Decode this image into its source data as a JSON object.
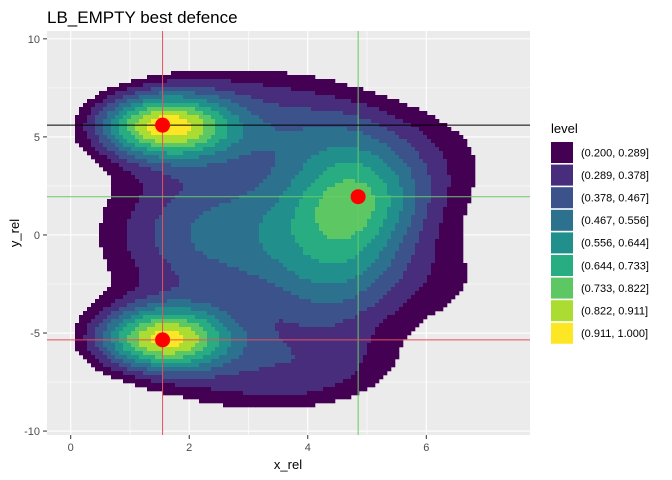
{
  "chart_data": {
    "type": "contour",
    "title": "LB_EMPTY best defence",
    "xlabel": "x_rel",
    "ylabel": "y_rel",
    "xlim": [
      -0.4,
      7.75
    ],
    "ylim": [
      -10.2,
      10.4
    ],
    "x_ticks": [
      0,
      2,
      4,
      6
    ],
    "x_tick_labels": [
      "0",
      "2",
      "4",
      "6"
    ],
    "y_ticks": [
      -10,
      -5,
      0,
      5,
      10
    ],
    "y_tick_labels": [
      "-10",
      "-5",
      "0",
      "5",
      "10"
    ],
    "grid": true,
    "legend": {
      "title": "level",
      "position": "right",
      "entries": [
        {
          "label": "(0.200, 0.289]",
          "color": "#440154"
        },
        {
          "label": "(0.289, 0.378]",
          "color": "#472D7B"
        },
        {
          "label": "(0.378, 0.467]",
          "color": "#3B528B"
        },
        {
          "label": "(0.467, 0.556]",
          "color": "#2C728E"
        },
        {
          "label": "(0.556, 0.644]",
          "color": "#21908C"
        },
        {
          "label": "(0.644, 0.733]",
          "color": "#27AD81"
        },
        {
          "label": "(0.733, 0.822]",
          "color": "#5DC863"
        },
        {
          "label": "(0.822, 0.911]",
          "color": "#AADC32"
        },
        {
          "label": "(0.911, 1.000]",
          "color": "#FDE725"
        }
      ]
    },
    "points": [
      {
        "x": 1.55,
        "y": 5.6,
        "color": "#FF0000"
      },
      {
        "x": 1.55,
        "y": -5.35,
        "color": "#FF0000"
      },
      {
        "x": 4.85,
        "y": 1.95,
        "color": "#FF0000"
      }
    ],
    "reference_lines": [
      {
        "orientation": "vertical",
        "value": 1.55,
        "color": "#E8505B"
      },
      {
        "orientation": "vertical",
        "value": 4.85,
        "color": "#66CC66"
      },
      {
        "orientation": "horizontal",
        "value": 5.6,
        "color": "#000000"
      },
      {
        "orientation": "horizontal",
        "value": 1.95,
        "color": "#66CC66"
      },
      {
        "orientation": "horizontal",
        "value": -5.35,
        "color": "#E8505B"
      }
    ],
    "panel_background": "#EBEBEB",
    "grid_color": "#FFFFFF"
  }
}
